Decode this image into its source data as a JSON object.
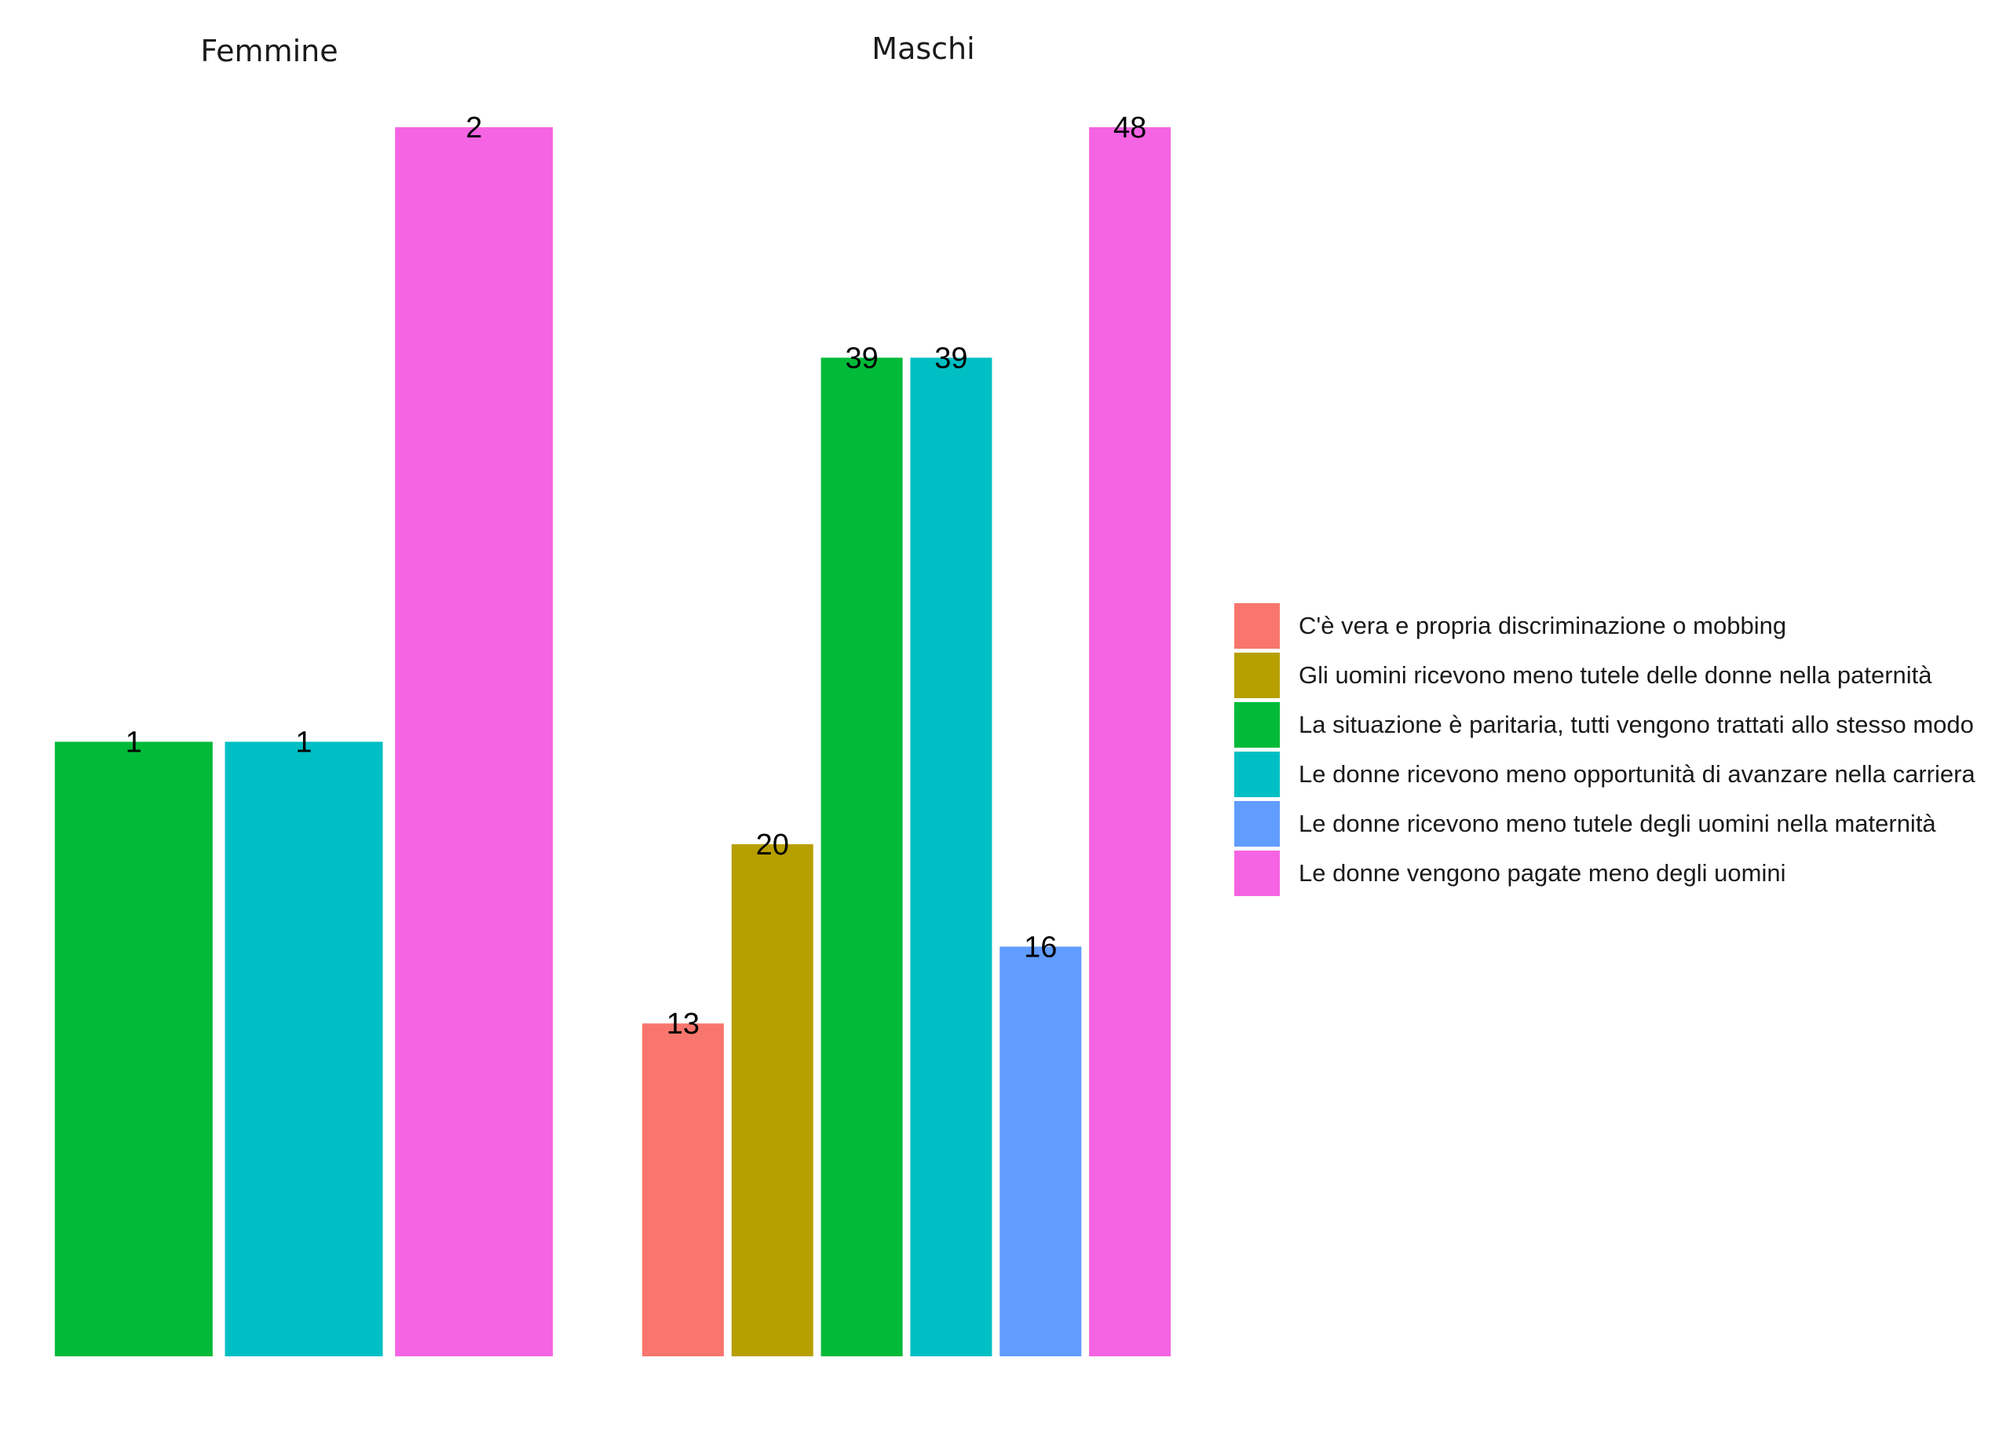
{
  "chart_data": {
    "type": "bar",
    "facets": [
      {
        "title": "Femmine",
        "bars": [
          {
            "category": "La situazione è paritaria, tutti vengono trattati allo stesso modo",
            "value": 1
          },
          {
            "category": "Le donne ricevono meno opportunità di avanzare nella carriera",
            "value": 1
          },
          {
            "category": "Le donne vengono pagate meno degli uomini",
            "value": 2
          }
        ]
      },
      {
        "title": "Maschi",
        "bars": [
          {
            "category": "C'è vera e propria discriminazione o mobbing",
            "value": 13
          },
          {
            "category": "Gli uomini ricevono meno tutele delle donne nella paternità",
            "value": 20
          },
          {
            "category": "La situazione è paritaria, tutti vengono trattati allo stesso modo",
            "value": 39
          },
          {
            "category": "Le donne ricevono meno opportunità di avanzare nella carriera",
            "value": 39
          },
          {
            "category": "Le donne ricevono meno tutele degli uomini nella maternità",
            "value": 16
          },
          {
            "category": "Le donne vengono pagate meno degli uomini",
            "value": 48
          }
        ]
      }
    ],
    "legend": {
      "position": "right",
      "items": [
        {
          "label": "C'è vera e propria discriminazione o mobbing",
          "color": "#F8766D"
        },
        {
          "label": "Gli uomini ricevono meno tutele delle donne nella paternità",
          "color": "#B79F00"
        },
        {
          "label": "La situazione è paritaria, tutti vengono trattati allo stesso modo",
          "color": "#00BA38"
        },
        {
          "label": "Le donne ricevono meno opportunità di avanzare nella carriera",
          "color": "#00BFC4"
        },
        {
          "label": "Le donne ricevono meno tutele degli uomini nella maternità",
          "color": "#619CFF"
        },
        {
          "label": "Le donne vengono pagate meno degli uomini",
          "color": "#F564E3"
        }
      ]
    },
    "scales": "free_y",
    "grid": false,
    "axes": false
  }
}
